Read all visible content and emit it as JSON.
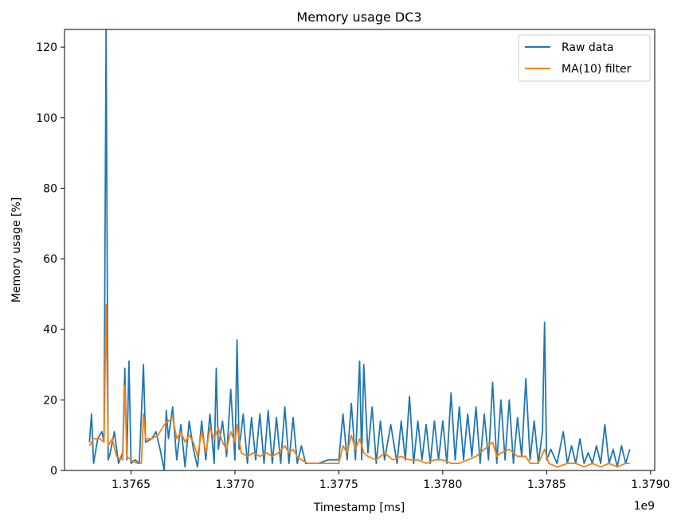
{
  "chart_data": {
    "type": "line",
    "title": "Memory usage DC3",
    "xlabel": "Timestamp [ms]",
    "ylabel": "Memory usage [%]",
    "x_offset_label": "1e9",
    "xlim": [
      1.37618,
      1.37902
    ],
    "ylim": [
      0,
      125
    ],
    "x_ticks": [
      1.3765,
      1.377,
      1.3775,
      1.378,
      1.3785,
      1.379
    ],
    "x_tick_labels": [
      "1.3765",
      "1.3770",
      "1.3775",
      "1.3780",
      "1.3785",
      "1.3790"
    ],
    "y_ticks": [
      0,
      20,
      40,
      60,
      80,
      100,
      120
    ],
    "y_tick_labels": [
      "0",
      "20",
      "40",
      "60",
      "80",
      "100",
      "120"
    ],
    "grid": false,
    "legend_position": "top-right",
    "series": [
      {
        "name": "Raw data",
        "color": "#1f77b4",
        "points": [
          [
            1.3763,
            8
          ],
          [
            1.37631,
            16
          ],
          [
            1.37632,
            2
          ],
          [
            1.37634,
            9
          ],
          [
            1.37636,
            11
          ],
          [
            1.37637,
            8
          ],
          [
            1.37638,
            125
          ],
          [
            1.37639,
            3
          ],
          [
            1.3764,
            5
          ],
          [
            1.37642,
            11
          ],
          [
            1.37644,
            2
          ],
          [
            1.37646,
            5
          ],
          [
            1.37647,
            29
          ],
          [
            1.37648,
            3
          ],
          [
            1.37649,
            31
          ],
          [
            1.3765,
            2
          ],
          [
            1.37652,
            3
          ],
          [
            1.37654,
            2
          ],
          [
            1.37656,
            30
          ],
          [
            1.37657,
            8
          ],
          [
            1.3766,
            9
          ],
          [
            1.37662,
            11
          ],
          [
            1.37664,
            6
          ],
          [
            1.37666,
            0
          ],
          [
            1.37667,
            17
          ],
          [
            1.37668,
            9
          ],
          [
            1.3767,
            18
          ],
          [
            1.37672,
            3
          ],
          [
            1.37674,
            13
          ],
          [
            1.37676,
            1
          ],
          [
            1.37678,
            14
          ],
          [
            1.3768,
            6
          ],
          [
            1.37682,
            1
          ],
          [
            1.37684,
            14
          ],
          [
            1.37686,
            3
          ],
          [
            1.37688,
            16
          ],
          [
            1.3769,
            2
          ],
          [
            1.37691,
            29
          ],
          [
            1.37692,
            6
          ],
          [
            1.37694,
            14
          ],
          [
            1.37696,
            4
          ],
          [
            1.37698,
            23
          ],
          [
            1.377,
            3
          ],
          [
            1.37701,
            37
          ],
          [
            1.37702,
            6
          ],
          [
            1.37704,
            16
          ],
          [
            1.37706,
            2
          ],
          [
            1.37708,
            15
          ],
          [
            1.3771,
            3
          ],
          [
            1.37712,
            16
          ],
          [
            1.37714,
            2
          ],
          [
            1.37716,
            17
          ],
          [
            1.37718,
            2
          ],
          [
            1.3772,
            15
          ],
          [
            1.37722,
            2
          ],
          [
            1.37724,
            18
          ],
          [
            1.37726,
            2
          ],
          [
            1.37728,
            15
          ],
          [
            1.3773,
            2
          ],
          [
            1.37732,
            7
          ],
          [
            1.37734,
            2
          ],
          [
            1.3774,
            2
          ],
          [
            1.37745,
            3
          ],
          [
            1.3775,
            3
          ],
          [
            1.37752,
            16
          ],
          [
            1.37754,
            3
          ],
          [
            1.37756,
            19
          ],
          [
            1.37758,
            3
          ],
          [
            1.3776,
            31
          ],
          [
            1.37761,
            3
          ],
          [
            1.37762,
            30
          ],
          [
            1.37764,
            5
          ],
          [
            1.37766,
            18
          ],
          [
            1.37768,
            2
          ],
          [
            1.3777,
            14
          ],
          [
            1.37772,
            3
          ],
          [
            1.37775,
            13
          ],
          [
            1.37778,
            2
          ],
          [
            1.3778,
            14
          ],
          [
            1.37782,
            3
          ],
          [
            1.37784,
            21
          ],
          [
            1.37786,
            2
          ],
          [
            1.37788,
            14
          ],
          [
            1.3779,
            3
          ],
          [
            1.37792,
            13
          ],
          [
            1.37794,
            2
          ],
          [
            1.37796,
            14
          ],
          [
            1.37798,
            3
          ],
          [
            1.378,
            14
          ],
          [
            1.37802,
            2
          ],
          [
            1.37804,
            22
          ],
          [
            1.37806,
            3
          ],
          [
            1.37808,
            18
          ],
          [
            1.3781,
            3
          ],
          [
            1.37812,
            16
          ],
          [
            1.37814,
            4
          ],
          [
            1.37816,
            18
          ],
          [
            1.37818,
            2
          ],
          [
            1.3782,
            16
          ],
          [
            1.37822,
            3
          ],
          [
            1.37824,
            25
          ],
          [
            1.37826,
            2
          ],
          [
            1.37828,
            20
          ],
          [
            1.3783,
            3
          ],
          [
            1.37832,
            20
          ],
          [
            1.37834,
            2
          ],
          [
            1.37836,
            15
          ],
          [
            1.37838,
            4
          ],
          [
            1.3784,
            26
          ],
          [
            1.37842,
            3
          ],
          [
            1.37844,
            14
          ],
          [
            1.37846,
            2
          ],
          [
            1.37848,
            11
          ],
          [
            1.37849,
            42
          ],
          [
            1.3785,
            3
          ],
          [
            1.37852,
            6
          ],
          [
            1.37855,
            2
          ],
          [
            1.37858,
            11
          ],
          [
            1.3786,
            2
          ],
          [
            1.37862,
            7
          ],
          [
            1.37864,
            2
          ],
          [
            1.37866,
            9
          ],
          [
            1.37868,
            2
          ],
          [
            1.3787,
            5
          ],
          [
            1.37872,
            2
          ],
          [
            1.37874,
            7
          ],
          [
            1.37876,
            2
          ],
          [
            1.37878,
            13
          ],
          [
            1.3788,
            2
          ],
          [
            1.37882,
            6
          ],
          [
            1.37884,
            1
          ],
          [
            1.37886,
            7
          ],
          [
            1.37888,
            2
          ],
          [
            1.3789,
            6
          ]
        ]
      },
      {
        "name": "MA(10) filter",
        "color": "#ff7f0e",
        "points": [
          [
            1.3763,
            7
          ],
          [
            1.37632,
            9
          ],
          [
            1.37635,
            9
          ],
          [
            1.37637,
            8
          ],
          [
            1.37638,
            47
          ],
          [
            1.37639,
            7
          ],
          [
            1.37641,
            9
          ],
          [
            1.37643,
            4
          ],
          [
            1.37646,
            3
          ],
          [
            1.37647,
            24
          ],
          [
            1.37648,
            4
          ],
          [
            1.3765,
            3
          ],
          [
            1.37653,
            2
          ],
          [
            1.37655,
            2
          ],
          [
            1.37656,
            16
          ],
          [
            1.37657,
            9
          ],
          [
            1.3766,
            9
          ],
          [
            1.37663,
            10
          ],
          [
            1.37666,
            13
          ],
          [
            1.37668,
            14
          ],
          [
            1.3767,
            15
          ],
          [
            1.37672,
            9
          ],
          [
            1.37674,
            11
          ],
          [
            1.37676,
            8
          ],
          [
            1.37678,
            10
          ],
          [
            1.3768,
            8
          ],
          [
            1.37682,
            4
          ],
          [
            1.37684,
            11
          ],
          [
            1.37686,
            5
          ],
          [
            1.37688,
            12
          ],
          [
            1.3769,
            9
          ],
          [
            1.37692,
            12
          ],
          [
            1.37694,
            8
          ],
          [
            1.37696,
            6
          ],
          [
            1.37698,
            11
          ],
          [
            1.377,
            8
          ],
          [
            1.37701,
            13
          ],
          [
            1.37703,
            5
          ],
          [
            1.37706,
            4
          ],
          [
            1.37709,
            5
          ],
          [
            1.37712,
            4
          ],
          [
            1.37715,
            5
          ],
          [
            1.37718,
            4
          ],
          [
            1.37721,
            5
          ],
          [
            1.37724,
            7
          ],
          [
            1.37726,
            5
          ],
          [
            1.37728,
            6
          ],
          [
            1.3773,
            4
          ],
          [
            1.37732,
            3
          ],
          [
            1.37735,
            2
          ],
          [
            1.3774,
            2
          ],
          [
            1.37745,
            2
          ],
          [
            1.3775,
            2
          ],
          [
            1.37752,
            7
          ],
          [
            1.37754,
            5
          ],
          [
            1.37756,
            10
          ],
          [
            1.37758,
            6
          ],
          [
            1.3776,
            9
          ],
          [
            1.37762,
            5
          ],
          [
            1.37764,
            4
          ],
          [
            1.37768,
            3
          ],
          [
            1.37772,
            5
          ],
          [
            1.37776,
            3
          ],
          [
            1.3778,
            4
          ],
          [
            1.37784,
            3
          ],
          [
            1.37788,
            3
          ],
          [
            1.37792,
            2
          ],
          [
            1.37796,
            3
          ],
          [
            1.378,
            3
          ],
          [
            1.37804,
            2
          ],
          [
            1.37808,
            2
          ],
          [
            1.37812,
            3
          ],
          [
            1.37816,
            4
          ],
          [
            1.3782,
            6
          ],
          [
            1.37824,
            8
          ],
          [
            1.37826,
            4
          ],
          [
            1.37828,
            5
          ],
          [
            1.37832,
            6
          ],
          [
            1.37836,
            4
          ],
          [
            1.3784,
            4
          ],
          [
            1.37842,
            2
          ],
          [
            1.37846,
            2
          ],
          [
            1.37849,
            6
          ],
          [
            1.37851,
            2
          ],
          [
            1.37855,
            1
          ],
          [
            1.3786,
            2
          ],
          [
            1.37864,
            2
          ],
          [
            1.37868,
            1
          ],
          [
            1.37872,
            2
          ],
          [
            1.37876,
            1
          ],
          [
            1.3788,
            2
          ],
          [
            1.37884,
            1
          ],
          [
            1.37888,
            2
          ],
          [
            1.3789,
            2
          ]
        ]
      }
    ]
  }
}
